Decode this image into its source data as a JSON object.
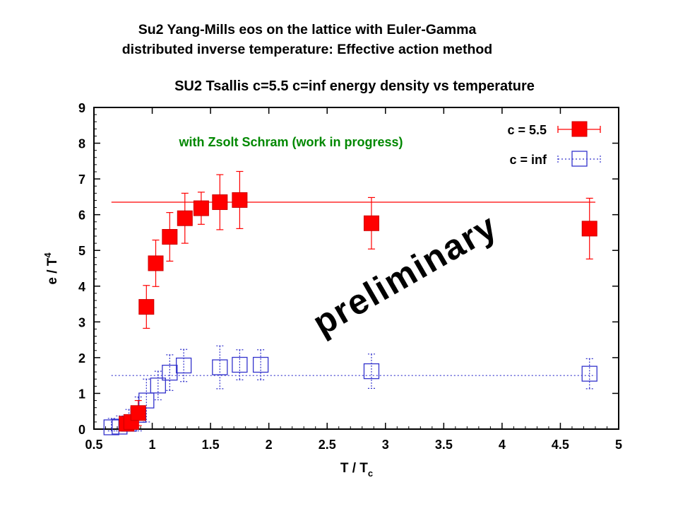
{
  "slide": {
    "title_line1": "Su2 Yang-Mills eos on the lattice with Euler-Gamma",
    "title_line2": "distributed inverse temperature:  Effective action method"
  },
  "colors": {
    "c55": "#ff0000",
    "cinf": "#3333cc",
    "annotation": "#008800",
    "axis": "#000000"
  },
  "chart_data": {
    "type": "scatter",
    "title": "SU2 Tsallis c=5.5 c=inf energy density vs temperature",
    "xlabel": "T / T",
    "xlabel_sub": "c",
    "ylabel": "e / T",
    "ylabel_sup": "4",
    "xlim": [
      0.5,
      5
    ],
    "ylim": [
      0,
      9
    ],
    "xticks": [
      "0.5",
      "1",
      "1.5",
      "2",
      "2.5",
      "3",
      "3.5",
      "4",
      "4.5",
      "5"
    ],
    "yticks": [
      "0",
      "1",
      "2",
      "3",
      "4",
      "5",
      "6",
      "7",
      "8",
      "9"
    ],
    "grid": false,
    "legend_position": "top-right",
    "annotation": "with Zsolt Schram (work in progress)",
    "watermark": "preliminary",
    "series": [
      {
        "name": "c = 5.5",
        "marker": "filled-square",
        "line": "solid",
        "fit_line": {
          "y": 6.35,
          "x": [
            0.65,
            4.8
          ]
        },
        "points": [
          {
            "x": 0.78,
            "y": 0.15,
            "err": 0.15
          },
          {
            "x": 0.82,
            "y": 0.2,
            "err": 0.2
          },
          {
            "x": 0.88,
            "y": 0.45,
            "err": 0.35
          },
          {
            "x": 0.95,
            "y": 3.42,
            "err": 0.6
          },
          {
            "x": 1.03,
            "y": 4.64,
            "err": 0.65
          },
          {
            "x": 1.15,
            "y": 5.38,
            "err": 0.68
          },
          {
            "x": 1.28,
            "y": 5.9,
            "err": 0.7
          },
          {
            "x": 1.42,
            "y": 6.18,
            "err": 0.45
          },
          {
            "x": 1.58,
            "y": 6.35,
            "err": 0.77
          },
          {
            "x": 1.75,
            "y": 6.41,
            "err": 0.8
          },
          {
            "x": 2.88,
            "y": 5.76,
            "err": 0.72
          },
          {
            "x": 4.75,
            "y": 5.61,
            "err": 0.85
          }
        ]
      },
      {
        "name": "c = inf",
        "marker": "open-square",
        "line": "dotted",
        "fit_line": {
          "y": 1.5,
          "x": [
            0.65,
            4.8
          ]
        },
        "points": [
          {
            "x": 0.65,
            "y": 0.05,
            "err": 0.25
          },
          {
            "x": 0.72,
            "y": 0.07,
            "err": 0.3
          },
          {
            "x": 0.8,
            "y": 0.15,
            "err": 0.4
          },
          {
            "x": 0.88,
            "y": 0.4,
            "err": 0.5
          },
          {
            "x": 0.95,
            "y": 0.8,
            "err": 0.6
          },
          {
            "x": 1.05,
            "y": 1.22,
            "err": 0.4
          },
          {
            "x": 1.15,
            "y": 1.58,
            "err": 0.5
          },
          {
            "x": 1.27,
            "y": 1.78,
            "err": 0.45
          },
          {
            "x": 1.58,
            "y": 1.73,
            "err": 0.6
          },
          {
            "x": 1.75,
            "y": 1.8,
            "err": 0.42
          },
          {
            "x": 1.93,
            "y": 1.8,
            "err": 0.42
          },
          {
            "x": 2.88,
            "y": 1.62,
            "err": 0.48
          },
          {
            "x": 4.75,
            "y": 1.55,
            "err": 0.42
          }
        ]
      }
    ]
  }
}
